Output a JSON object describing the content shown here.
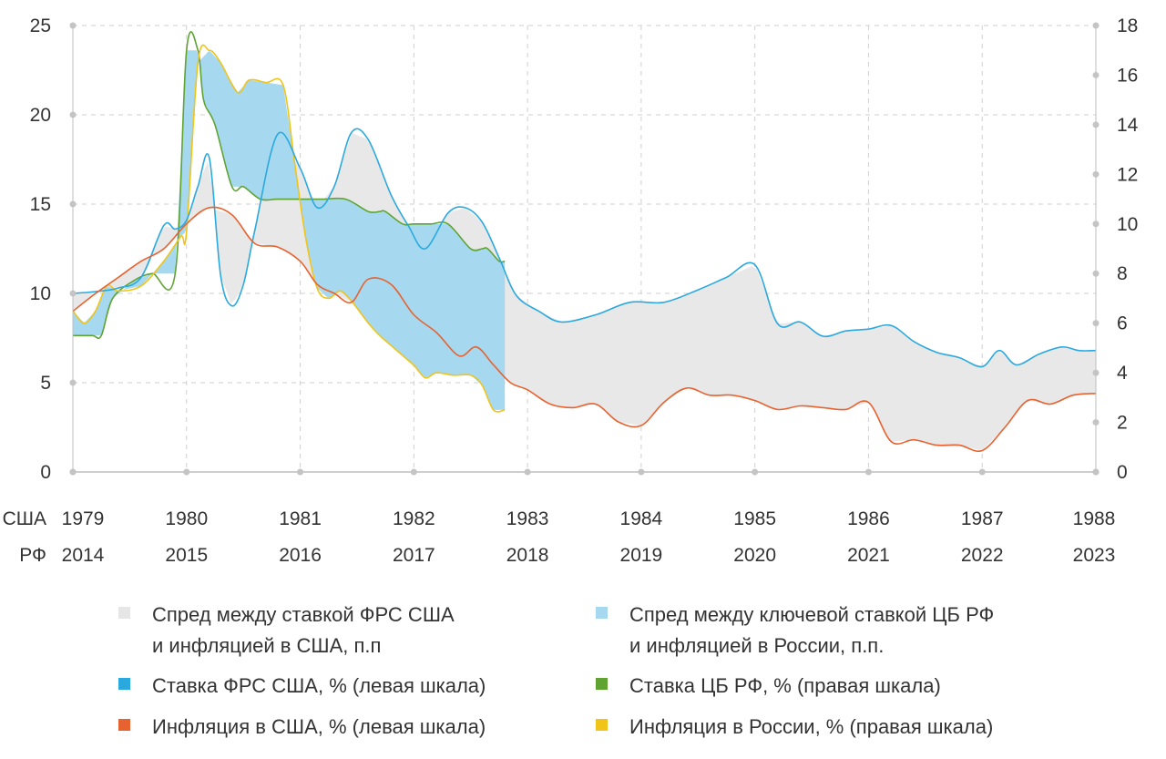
{
  "chart_data": {
    "type": "line",
    "title": "",
    "x_rows": [
      {
        "label": "США",
        "years": [
          "1979",
          "1980",
          "1981",
          "1982",
          "1983",
          "1984",
          "1985",
          "1986",
          "1987",
          "1988"
        ]
      },
      {
        "label": "РФ",
        "years": [
          "2014",
          "2015",
          "2016",
          "2017",
          "2018",
          "2019",
          "2020",
          "2021",
          "2022",
          "2023"
        ]
      }
    ],
    "xlim": [
      0,
      9
    ],
    "y_left": {
      "ticks": [
        "0",
        "5",
        "10",
        "15",
        "20",
        "25"
      ],
      "ylim": [
        0,
        25
      ]
    },
    "y_right": {
      "ticks": [
        "0",
        "2",
        "4",
        "6",
        "8",
        "10",
        "12",
        "14",
        "16",
        "18"
      ],
      "ylim": [
        0,
        18
      ]
    },
    "grid": true,
    "series": [
      {
        "name": "Ставка ФРС США, % (левая шкала)",
        "axis": "left",
        "color": "#2aa9df",
        "x": [
          0,
          0.2,
          0.4,
          0.6,
          0.8,
          0.9,
          1.0,
          1.1,
          1.2,
          1.3,
          1.4,
          1.5,
          1.6,
          1.8,
          2.0,
          2.15,
          2.3,
          2.45,
          2.6,
          2.8,
          2.95,
          3.1,
          3.3,
          3.45,
          3.6,
          3.75,
          3.9,
          4.1,
          4.3,
          4.6,
          4.9,
          5.2,
          5.5,
          5.75,
          6.0,
          6.2,
          6.4,
          6.6,
          6.8,
          7.0,
          7.2,
          7.4,
          7.6,
          7.8,
          8.0,
          8.15,
          8.3,
          8.5,
          8.7,
          8.85,
          9.0
        ],
        "values": [
          10.0,
          10.1,
          10.3,
          10.9,
          13.8,
          13.6,
          14.1,
          16.0,
          17.6,
          11.0,
          9.3,
          10.5,
          13.5,
          18.9,
          17.0,
          14.8,
          16.0,
          19.0,
          18.6,
          15.5,
          13.8,
          12.5,
          14.5,
          14.8,
          14.0,
          12.0,
          9.9,
          9.0,
          8.4,
          8.8,
          9.5,
          9.5,
          10.2,
          10.9,
          11.6,
          8.3,
          8.4,
          7.6,
          7.9,
          8.0,
          8.2,
          7.3,
          6.7,
          6.4,
          5.9,
          6.8,
          6.0,
          6.6,
          7.0,
          6.8,
          6.8
        ]
      },
      {
        "name": "Инфляция в США, % (левая шкала)",
        "axis": "left",
        "color": "#e8622f",
        "x": [
          0,
          0.2,
          0.4,
          0.6,
          0.8,
          1.0,
          1.2,
          1.4,
          1.6,
          1.8,
          2.0,
          2.15,
          2.3,
          2.45,
          2.6,
          2.8,
          3.0,
          3.2,
          3.4,
          3.55,
          3.7,
          3.85,
          4.0,
          4.2,
          4.4,
          4.6,
          4.8,
          5.0,
          5.2,
          5.4,
          5.6,
          5.8,
          6.0,
          6.2,
          6.4,
          6.6,
          6.8,
          7.0,
          7.2,
          7.4,
          7.6,
          7.8,
          8.0,
          8.2,
          8.4,
          8.6,
          8.8,
          9.0
        ],
        "values": [
          9.0,
          10.0,
          10.9,
          11.8,
          12.5,
          13.9,
          14.8,
          14.4,
          12.8,
          12.6,
          11.8,
          10.5,
          10.0,
          9.5,
          10.8,
          10.5,
          8.8,
          7.8,
          6.5,
          7.0,
          6.0,
          5.0,
          4.6,
          3.8,
          3.6,
          3.8,
          2.8,
          2.6,
          3.9,
          4.7,
          4.3,
          4.3,
          4.0,
          3.5,
          3.7,
          3.6,
          3.5,
          3.9,
          1.7,
          1.8,
          1.5,
          1.5,
          1.2,
          2.5,
          4.0,
          3.8,
          4.3,
          4.4
        ]
      },
      {
        "name": "Ставка ЦБ РФ, % (правая шкала)",
        "axis": "right",
        "color": "#5fa432",
        "x": [
          0,
          0.17,
          0.25,
          0.35,
          0.55,
          0.7,
          0.9,
          1.0,
          1.1,
          1.15,
          1.25,
          1.4,
          1.5,
          1.65,
          1.8,
          2.0,
          2.2,
          2.4,
          2.6,
          2.7,
          2.75,
          2.9,
          3.0,
          3.15,
          3.3,
          3.5,
          3.6,
          3.65,
          3.75,
          3.8
        ],
        "values": [
          5.5,
          5.5,
          5.5,
          7.0,
          7.75,
          8.0,
          8.0,
          17.0,
          17.0,
          15.0,
          14.0,
          11.5,
          11.5,
          11.0,
          11.0,
          11.0,
          11.0,
          11.0,
          10.5,
          10.5,
          10.5,
          10.0,
          10.0,
          10.0,
          10.0,
          9.0,
          9.0,
          9.0,
          8.5,
          8.5
        ]
      },
      {
        "name": "Инфляция в России, % (правая шкала)",
        "axis": "right",
        "color": "#f0c419",
        "x": [
          0,
          0.1,
          0.2,
          0.3,
          0.4,
          0.6,
          0.8,
          0.95,
          1.0,
          1.1,
          1.2,
          1.3,
          1.45,
          1.55,
          1.7,
          1.85,
          1.95,
          2.05,
          2.15,
          2.25,
          2.35,
          2.45,
          2.6,
          2.7,
          2.85,
          3.0,
          3.1,
          3.2,
          3.35,
          3.5,
          3.6,
          3.7,
          3.8
        ],
        "values": [
          6.5,
          6.0,
          6.5,
          7.5,
          7.3,
          7.5,
          8.5,
          9.5,
          9.7,
          16.5,
          17.0,
          16.5,
          15.3,
          15.8,
          15.7,
          15.6,
          12.5,
          9.4,
          7.4,
          7.0,
          7.3,
          6.9,
          6.0,
          5.5,
          4.9,
          4.3,
          3.8,
          4.0,
          3.9,
          3.9,
          3.5,
          2.5,
          2.5
        ]
      }
    ],
    "fills": [
      {
        "name": "Спред между ставкой ФРС США и инфляцией в США, п.п",
        "between": [
          0,
          1
        ],
        "color": "#e8e8e8"
      },
      {
        "name": "Спред между ключевой ставкой ЦБ РФ и инфляцией в России, п.п.",
        "between": [
          2,
          3
        ],
        "color": "#a6d9ef"
      }
    ]
  },
  "legend": [
    {
      "line1": "Спред между ставкой ФРС США",
      "line2": "и инфляцией в США, п.п",
      "color": "#e6e6e6"
    },
    {
      "line1": "Спред между ключевой ставкой ЦБ РФ",
      "line2": "и инфляцией в России, п.п.",
      "color": "#a6d9ef"
    },
    {
      "line1": "Ставка ФРС США, % (левая шкала)",
      "color": "#2aa9df"
    },
    {
      "line1": "Ставка ЦБ РФ, % (правая шкала)",
      "color": "#5fa432"
    },
    {
      "line1": "Инфляция в США, % (левая шкала)",
      "color": "#e8622f"
    },
    {
      "line1": "Инфляция в России, % (правая шкала)",
      "color": "#f0c419"
    }
  ]
}
